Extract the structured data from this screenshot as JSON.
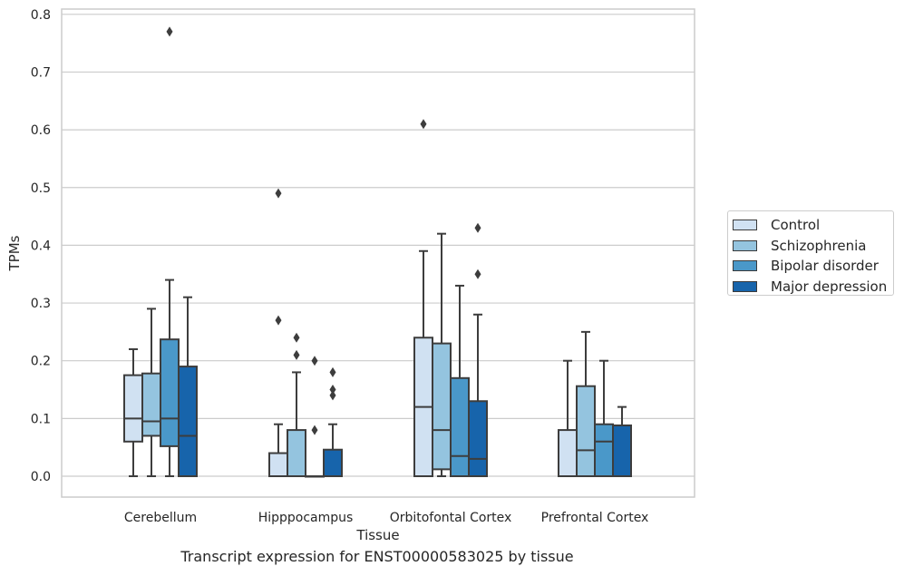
{
  "chart_data": {
    "type": "box",
    "title": "Transcript expression for ENST00000583025 by tissue",
    "xlabel": "Tissue",
    "ylabel": "TPMs",
    "ylim": [
      -0.04,
      0.815
    ],
    "yticks": [
      "0.0",
      "0.1",
      "0.2",
      "0.3",
      "0.4",
      "0.5",
      "0.6",
      "0.7",
      "0.8"
    ],
    "grid": "horizontal",
    "legend_position": "right",
    "categories": [
      "Cerebellum",
      "Hipppocampus",
      "Orbitofontal Cortex",
      "Prefrontal Cortex"
    ],
    "series": [
      {
        "name": "Control",
        "color": "#d0e1f2",
        "boxes": [
          {
            "whislo": 0.0,
            "q1": 0.06,
            "median": 0.1,
            "q3": 0.175,
            "whishi": 0.22,
            "fliers": []
          },
          {
            "whislo": 0.0,
            "q1": 0.0,
            "median": 0.0,
            "q3": 0.04,
            "whishi": 0.09,
            "fliers": [
              0.27,
              0.49
            ]
          },
          {
            "whislo": 0.0,
            "q1": 0.0,
            "median": 0.12,
            "q3": 0.24,
            "whishi": 0.39,
            "fliers": [
              0.61
            ]
          },
          {
            "whislo": 0.0,
            "q1": 0.0,
            "median": 0.0,
            "q3": 0.08,
            "whishi": 0.2,
            "fliers": []
          }
        ]
      },
      {
        "name": "Schizophrenia",
        "color": "#94c4df",
        "boxes": [
          {
            "whislo": 0.0,
            "q1": 0.07,
            "median": 0.095,
            "q3": 0.178,
            "whishi": 0.29,
            "fliers": []
          },
          {
            "whislo": 0.0,
            "q1": 0.0,
            "median": 0.0,
            "q3": 0.08,
            "whishi": 0.18,
            "fliers": [
              0.21,
              0.24
            ]
          },
          {
            "whislo": 0.0,
            "q1": 0.012,
            "median": 0.08,
            "q3": 0.23,
            "whishi": 0.42,
            "fliers": []
          },
          {
            "whislo": 0.0,
            "q1": 0.0,
            "median": 0.045,
            "q3": 0.156,
            "whishi": 0.25,
            "fliers": []
          }
        ]
      },
      {
        "name": "Bipolar disorder",
        "color": "#4a98c9",
        "boxes": [
          {
            "whislo": 0.0,
            "q1": 0.052,
            "median": 0.1,
            "q3": 0.237,
            "whishi": 0.34,
            "fliers": [
              0.77
            ]
          },
          {
            "whislo": 0.0,
            "q1": 0.0,
            "median": 0.0,
            "q3": 0.0,
            "whishi": 0.0,
            "fliers": [
              0.08,
              0.2
            ]
          },
          {
            "whislo": 0.0,
            "q1": 0.0,
            "median": 0.035,
            "q3": 0.17,
            "whishi": 0.33,
            "fliers": []
          },
          {
            "whislo": 0.0,
            "q1": 0.0,
            "median": 0.06,
            "q3": 0.09,
            "whishi": 0.2,
            "fliers": []
          }
        ]
      },
      {
        "name": "Major depression",
        "color": "#1764ab",
        "boxes": [
          {
            "whislo": 0.0,
            "q1": 0.0,
            "median": 0.07,
            "q3": 0.19,
            "whishi": 0.31,
            "fliers": []
          },
          {
            "whislo": 0.0,
            "q1": 0.0,
            "median": 0.0,
            "q3": 0.046,
            "whishi": 0.09,
            "fliers": [
              0.14,
              0.15,
              0.18
            ]
          },
          {
            "whislo": 0.0,
            "q1": 0.0,
            "median": 0.03,
            "q3": 0.13,
            "whishi": 0.28,
            "fliers": [
              0.35,
              0.43
            ]
          },
          {
            "whislo": 0.0,
            "q1": 0.0,
            "median": 0.0,
            "q3": 0.088,
            "whishi": 0.12,
            "fliers": []
          }
        ]
      }
    ]
  }
}
